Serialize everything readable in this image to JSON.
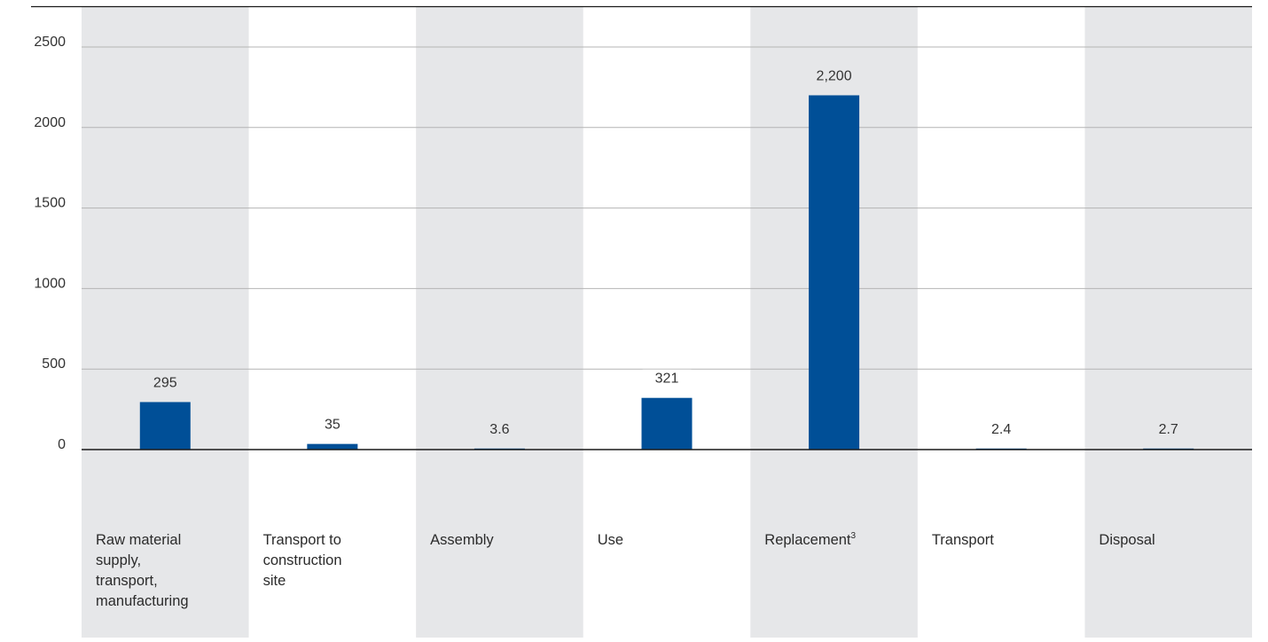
{
  "chart_data": {
    "type": "bar",
    "categories": [
      [
        "Raw material",
        "supply,",
        "transport,",
        "manufacturing"
      ],
      [
        "Transport to",
        "construction",
        "site"
      ],
      [
        "Assembly"
      ],
      [
        "Use"
      ],
      [
        "Replacement"
      ],
      [
        "Transport"
      ],
      [
        "Disposal"
      ]
    ],
    "category_superscripts": [
      "",
      "",
      "",
      "",
      "3",
      "",
      ""
    ],
    "values": [
      295,
      35,
      3.6,
      321,
      2200,
      2.4,
      2.7
    ],
    "value_labels": [
      "295",
      "35",
      "3.6",
      "321",
      "2,200",
      "2.4",
      "2.7"
    ],
    "y_ticks": [
      0,
      500,
      1000,
      1500,
      2000,
      2500
    ],
    "ylim": [
      0,
      2750
    ],
    "title": "",
    "xlabel": "",
    "ylabel": "",
    "grid": true,
    "legend": "none"
  },
  "colors": {
    "bar": "#004f97",
    "band": "#e6e7e9",
    "grid": "#b4b4b4",
    "baseline": "#1a1a1a",
    "top_rule": "#1a1a1a"
  }
}
